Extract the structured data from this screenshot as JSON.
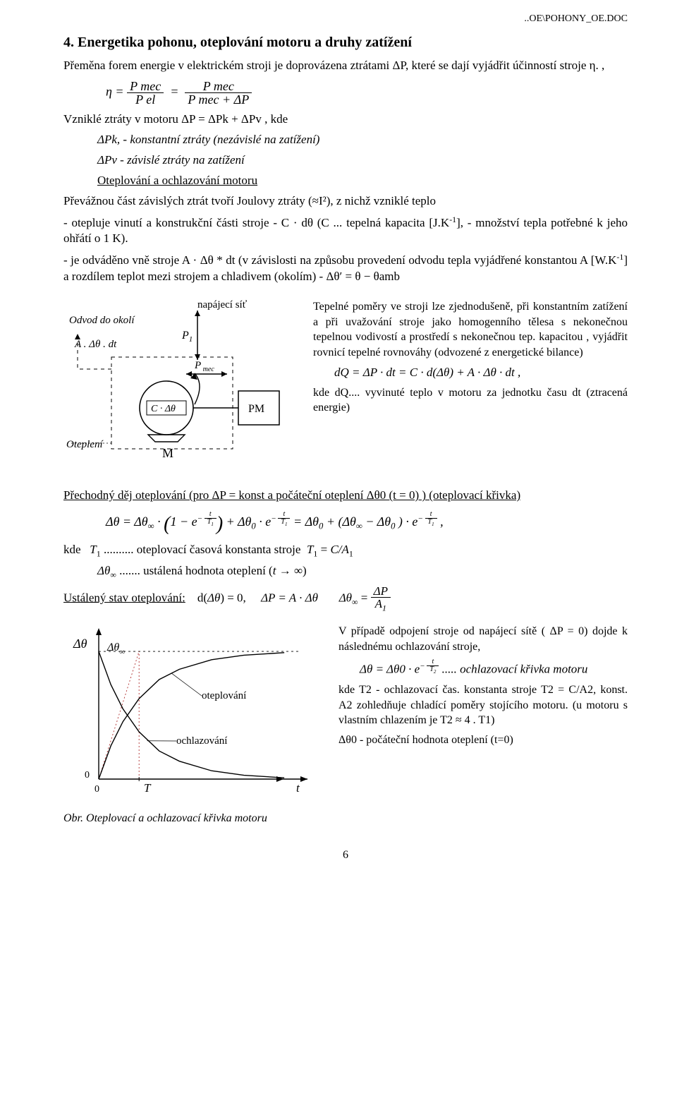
{
  "header_path": "..OE\\POHONY_OE.DOC",
  "title": "4.  Energetika  pohonu, oteplování  motoru a druhy zatížení",
  "intro": "Přeměna forem energie v elektrickém stroji je doprovázena ztrátami ΔP, které se dají vyjádřit účinností stroje η. ,",
  "eta_eq": {
    "lhs": "η =",
    "n1": "P mec",
    "d1": "P el",
    "n2": "P mec",
    "d2": "P mec + ΔP"
  },
  "losses_line": "Vzniklé ztráty v motoru  ΔP = ΔPk + ΔPv ,  kde",
  "loss_k": "ΔPk, - konstantní ztráty  (nezávislé na zatížení)",
  "loss_v": "ΔPv - závislé ztráty na zatížení",
  "subhead": "Oteplování  a  ochlazování motoru",
  "bullet1": "Převážnou část závislých  ztrát tvoří Joulovy ztráty (≈I²), z nichž vzniklé teplo",
  "bullet2_a": "- otepluje vinutí a konstrukční části stroje -  C · dθ  (C  ... tepelná kapacita [J.K",
  "bullet2_b": "], - množství tepla potřebné k jeho ohřátí o 1 K).",
  "bullet3_a": "- je odváděno vně stroje  A · Δθ * dt  (v závislosti na způsobu provedení odvodu tepla vyjádřené konstantou A [W.K",
  "bullet3_b": "] a rozdílem teplot mezi strojem a chladivem (okolím) -  Δθ′ = θ − θamb",
  "diagram": {
    "odvod": "Odvod do okolí",
    "A_dtheta_dt": "A . Δθ . dt",
    "otepleni": "Oteplení",
    "C_dtheta": "C · Δθ",
    "M": "M",
    "P1": "P1",
    "Pmec": "P mec",
    "napajeci": "napájecí síť",
    "PM": "PM"
  },
  "right_block1": "Tepelné poměry ve stroji lze zjednodušeně, při konstantním zatížení a při uvažování stroje jako homogenního tělesa s nekonečnou tepelnou vodivostí a prostředí s nekonečnou tep. kapacitou , vyjádřit rovnicí tepelné rovnováhy (odvozené z energetické bilance)",
  "dQ_eq": "dQ = ΔP · dt  = C · d(Δθ) + A · Δθ · dt ,",
  "dQ_where": "kde      dQ.... vyvinuté teplo v motoru za jednotku času dt (ztracená energie)",
  "transient": "Přechodný děj oteplování (pro ΔP = konst a počáteční oteplení Δθ0 (t = 0) ) (oteplovací křivka)",
  "transient_eq": "Δθ = Δθ∞ · ( 1 − e^{-t/T1} ) + Δθ0 · e^{-t/T1}  = Δθ0 + (Δθ∞ − Δθ0 ) · e^{-t/T1} ,",
  "transient_eq_html": "Δθ = Δθ<sub>∞</sub> · ⎛1 − e<sup>−t/T<sub>1</sub></sup>⎞ + Δθ<sub>0</sub> · e<sup>−t/T<sub>1</sub></sup> = Δθ<sub>0</sub> + (Δθ<sub>∞</sub> − Δθ<sub>0</sub> ) · e<sup>−t/T<sub>1</sub></sup> ,",
  "kde_T1": "kde   T1 .......... oteplovací časová konstanta stroje  T1 = C/A1",
  "kde_dtheta_inf": "Δθ∞ ....... ustálená hodnota oteplení (t → ∞)",
  "steady_label": "Ustálený stav oteplování:",
  "steady_eq": "d(Δθ) = 0,        ΔP = A · Δθ        Δθ∞ = ΔP / A1",
  "chart": {
    "type": "line",
    "y_label": "Δθ",
    "y_inf": "Δθ∞",
    "heating_label": "oteplování",
    "cooling_label": "ochlazování",
    "x_label": "t",
    "T_label": "T",
    "origin_x": "0",
    "origin_y": "0",
    "heating_color": "#000000",
    "cooling_color": "#000000",
    "dotted_color": "#b03030",
    "axis_color": "#000000",
    "background": "#ffffff",
    "line_width": 1.4,
    "xlim": [
      0,
      5
    ],
    "ylim": [
      0,
      1.05
    ],
    "heating_pts": [
      [
        0,
        0
      ],
      [
        0.3,
        0.26
      ],
      [
        0.6,
        0.45
      ],
      [
        1,
        0.63
      ],
      [
        1.5,
        0.78
      ],
      [
        2,
        0.86
      ],
      [
        2.8,
        0.935
      ],
      [
        3.6,
        0.97
      ],
      [
        4.6,
        0.99
      ]
    ],
    "cooling_pts": [
      [
        0,
        1
      ],
      [
        0.3,
        0.74
      ],
      [
        0.6,
        0.55
      ],
      [
        1,
        0.37
      ],
      [
        1.5,
        0.22
      ],
      [
        2,
        0.14
      ],
      [
        2.8,
        0.065
      ],
      [
        3.6,
        0.03
      ],
      [
        4.6,
        0.01
      ]
    ],
    "tangent": [
      [
        0,
        0
      ],
      [
        1,
        1
      ]
    ]
  },
  "caption": "Obr.  Oteplovací a ochlazovací křivka motoru",
  "right2_p1": "V případě odpojení stroje od napájecí sítě ( ΔP = 0) dojde k následnému ochlazování stroje,",
  "right2_eq_lhs": "Δθ = Δθ0 · e",
  "right2_eq_exp": "−t / T2",
  "right2_eq_tail": " .....  ochlazovací křivka motoru",
  "right2_p2": "kde T2 - ochlazovací čas. konstanta stroje T2 = C/A2, konst. A2 zohledňuje chladící poměry stojícího motoru. (u motoru s vlastním chlazením je T2 ≈ 4 . T1)",
  "right2_p3": "Δθ0 - počáteční hodnota oteplení (t=0)",
  "page_number": "6"
}
